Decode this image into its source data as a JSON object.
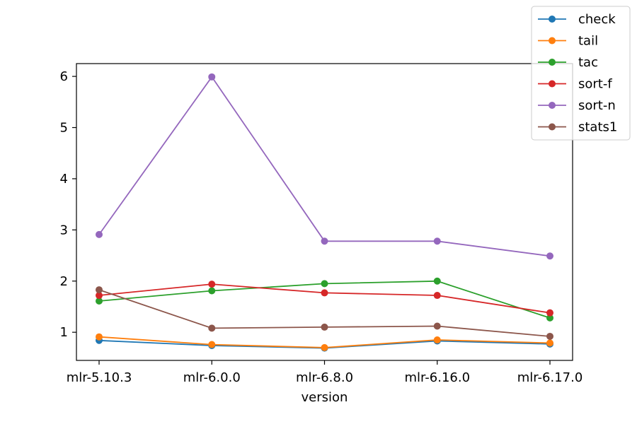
{
  "chart_data": {
    "type": "line",
    "xlabel": "version",
    "ylabel": "",
    "categories": [
      "mlr-5.10.3",
      "mlr-6.0.0",
      "mlr-6.8.0",
      "mlr-6.16.0",
      "mlr-6.17.0"
    ],
    "ylim": [
      0.45,
      6.25
    ],
    "yticks": [
      1,
      2,
      3,
      4,
      5,
      6
    ],
    "grid": false,
    "legend_position": "top-right",
    "series": [
      {
        "name": "check",
        "color": "#1f77b4",
        "values": [
          0.84,
          0.74,
          0.69,
          0.83,
          0.77
        ]
      },
      {
        "name": "tail",
        "color": "#ff7f0e",
        "values": [
          0.91,
          0.76,
          0.7,
          0.85,
          0.79
        ]
      },
      {
        "name": "tac",
        "color": "#2ca02c",
        "values": [
          1.61,
          1.81,
          1.95,
          2.0,
          1.28
        ]
      },
      {
        "name": "sort-f",
        "color": "#d62728",
        "values": [
          1.72,
          1.94,
          1.77,
          1.72,
          1.38
        ]
      },
      {
        "name": "sort-n",
        "color": "#9467bd",
        "values": [
          2.91,
          5.99,
          2.78,
          2.78,
          2.49
        ]
      },
      {
        "name": "stats1",
        "color": "#8c564b",
        "values": [
          1.83,
          1.08,
          1.1,
          1.12,
          0.92
        ]
      }
    ]
  }
}
